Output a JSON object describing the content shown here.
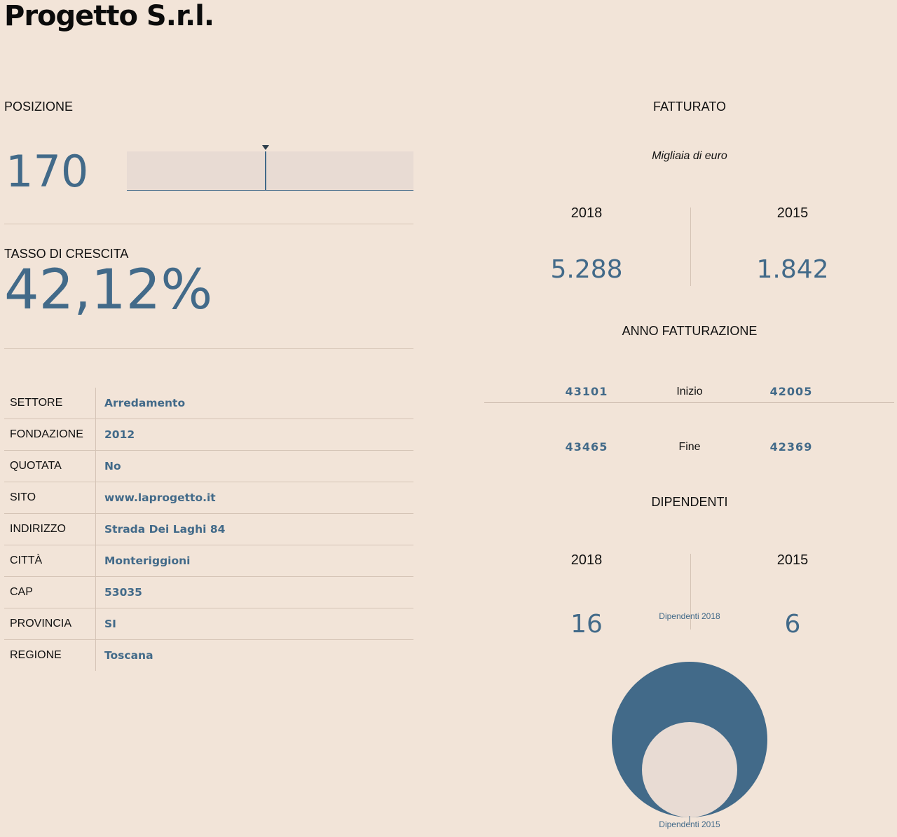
{
  "title": "Progetto S.r.l.",
  "posizione": {
    "label": "POSIZIONE",
    "value": "170",
    "marker_fraction": 0.485
  },
  "tasso": {
    "label": "TASSO DI CRESCITA",
    "value": "42,12%"
  },
  "info": [
    {
      "key": "SETTORE",
      "value": "Arredamento"
    },
    {
      "key": "FONDAZIONE",
      "value": "2012"
    },
    {
      "key": "QUOTATA",
      "value": "No"
    },
    {
      "key": "SITO",
      "value": "www.laprogetto.it"
    },
    {
      "key": "INDIRIZZO",
      "value": "Strada Dei Laghi 84"
    },
    {
      "key": "CITTÀ",
      "value": "Monteriggioni"
    },
    {
      "key": "CAP",
      "value": "53035"
    },
    {
      "key": "PROVINCIA",
      "value": "SI"
    },
    {
      "key": "REGIONE",
      "value": "Toscana"
    }
  ],
  "fatturato": {
    "label": "FATTURATO",
    "subtitle": "Migliaia di euro",
    "year_a": "2018",
    "year_b": "2015",
    "value_a": "5.288",
    "value_b": "1.842"
  },
  "anno_fatturazione": {
    "label": "ANNO FATTURAZIONE",
    "inizio_label": "Inizio",
    "fine_label": "Fine",
    "inizio_a": "43101",
    "inizio_b": "42005",
    "fine_a": "43465",
    "fine_b": "42369"
  },
  "dipendenti": {
    "label": "DIPENDENTI",
    "year_a": "2018",
    "year_b": "2015",
    "value_a": "16",
    "value_b": "6",
    "circle_label_a": "Dipendenti 2018",
    "circle_label_b": "Dipendenti 2015"
  },
  "colors": {
    "background": "#f2e4d8",
    "accent": "#426a89",
    "light": "#e8dbd3",
    "rule": "#d5c4b6"
  }
}
